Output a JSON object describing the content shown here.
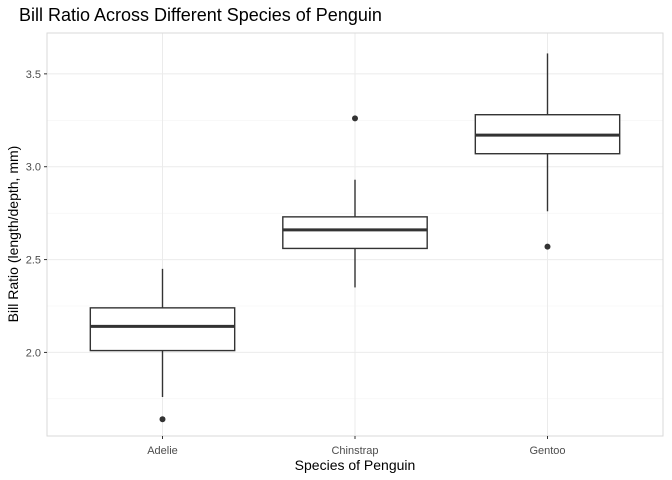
{
  "chart_data": {
    "type": "boxplot",
    "title": "Bill Ratio Across Different Species of Penguin",
    "xlabel": "Species of Penguin",
    "ylabel": "Bill Ratio (length/depth, mm)",
    "categories": [
      "Adelie",
      "Chinstrap",
      "Gentoo"
    ],
    "ylim": [
      1.55,
      3.72
    ],
    "y_ticks": [
      2.0,
      2.5,
      3.0,
      3.5
    ],
    "y_tick_labels": [
      "2.0",
      "2.5",
      "3.0",
      "3.5"
    ],
    "y_minor_ticks": [
      1.75,
      2.25,
      2.75,
      3.25
    ],
    "grid": true,
    "boxes": [
      {
        "category": "Adelie",
        "whisker_low": 1.76,
        "q1": 2.01,
        "median": 2.14,
        "q3": 2.24,
        "whisker_high": 2.45,
        "outliers": [
          1.64
        ]
      },
      {
        "category": "Chinstrap",
        "whisker_low": 2.35,
        "q1": 2.56,
        "median": 2.66,
        "q3": 2.73,
        "whisker_high": 2.93,
        "outliers": [
          3.26
        ]
      },
      {
        "category": "Gentoo",
        "whisker_low": 2.76,
        "q1": 3.07,
        "median": 3.17,
        "q3": 3.28,
        "whisker_high": 3.61,
        "outliers": [
          2.57
        ]
      }
    ],
    "colors": {
      "box_fill": "#ffffff",
      "box_stroke": "#333333",
      "grid": "#ebebeb",
      "background": "#ffffff"
    }
  }
}
